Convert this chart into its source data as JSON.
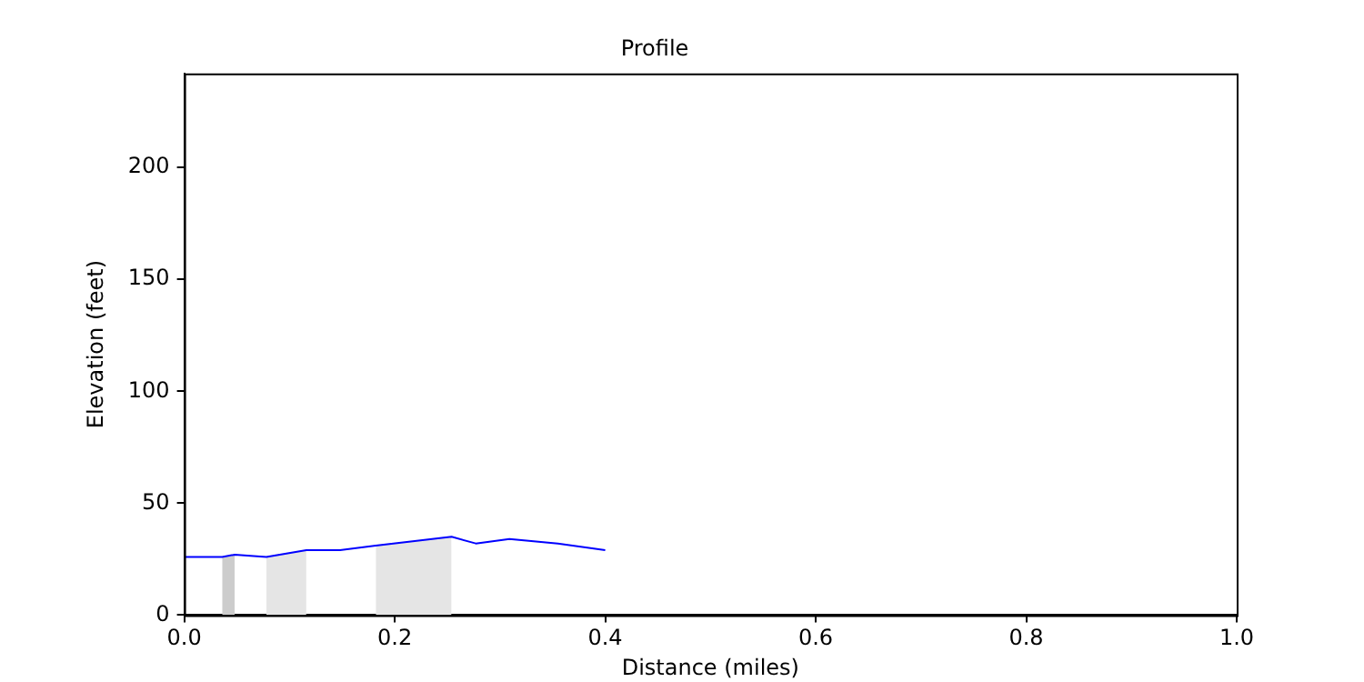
{
  "chart_data": {
    "type": "line",
    "title": "Profile",
    "xlabel": "Distance (miles)",
    "ylabel": "Elevation (feet)",
    "xlim": [
      0,
      1
    ],
    "ylim": [
      0,
      242
    ],
    "xticks": [
      {
        "value": 0,
        "label": "0.0"
      },
      {
        "value": 0.2,
        "label": "0.2"
      },
      {
        "value": 0.4,
        "label": "0.4"
      },
      {
        "value": 0.6,
        "label": "0.6"
      },
      {
        "value": 0.8,
        "label": "0.8"
      },
      {
        "value": 1,
        "label": "1.0"
      }
    ],
    "yticks": [
      0,
      50,
      100,
      150,
      200
    ],
    "grid": false,
    "legend": false,
    "marker": "none",
    "line_style": "solid",
    "x": [
      0,
      0.036,
      0.048,
      0.078,
      0.116,
      0.148,
      0.182,
      0.254,
      0.277,
      0.309,
      0.355,
      0.4
    ],
    "series": [
      {
        "color": "#0000ff",
        "values": [
          26,
          26,
          27,
          26,
          29,
          29,
          31,
          35,
          32,
          34,
          32,
          29
        ]
      },
      {
        "type": "area",
        "color": "#cccccc",
        "x": [
          0.036,
          0.048
        ],
        "values": [
          26,
          27
        ]
      },
      {
        "type": "area",
        "color": "#e5e5e5",
        "x": [
          0.078,
          0.116
        ],
        "values": [
          26,
          29
        ]
      },
      {
        "type": "area",
        "color": "#e5e5e5",
        "x": [
          0.182,
          0.254
        ],
        "values": [
          31,
          35
        ]
      }
    ]
  }
}
